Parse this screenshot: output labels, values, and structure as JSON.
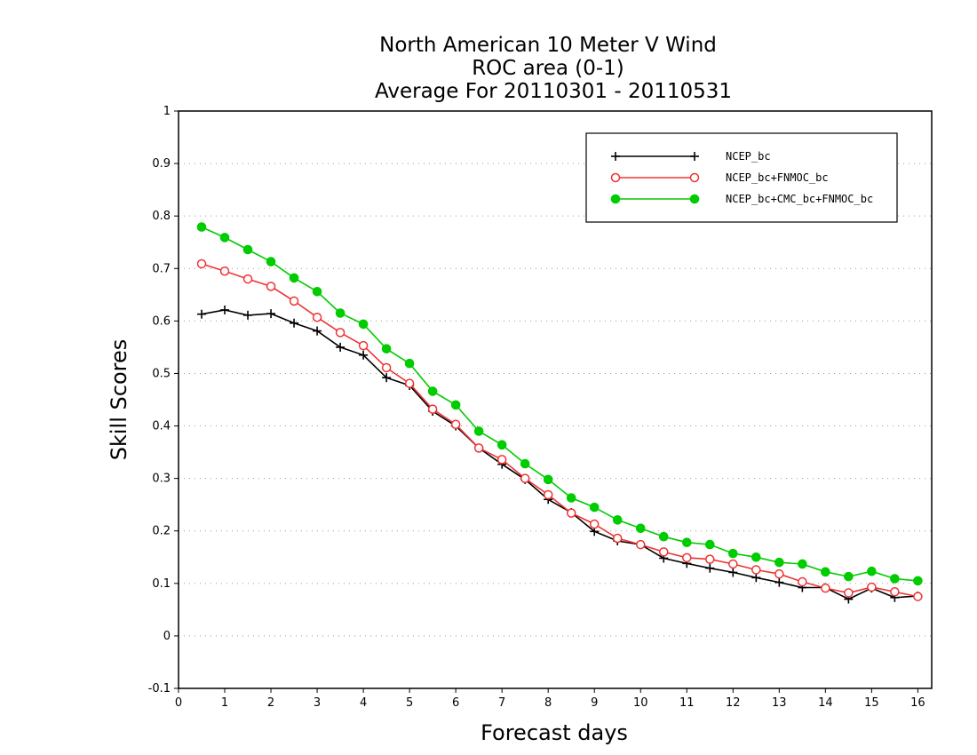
{
  "chart_data": {
    "type": "line",
    "title_lines": [
      "North American 10 Meter V Wind",
      "ROC area (0-1)",
      "Average For 20110301 - 20110531"
    ],
    "xlabel": "Forecast days",
    "ylabel": "Skill Scores",
    "xlim": [
      0,
      16.3
    ],
    "ylim": [
      -0.1,
      1
    ],
    "x_ticks": [
      0,
      1,
      2,
      3,
      4,
      5,
      6,
      7,
      8,
      9,
      10,
      11,
      12,
      13,
      14,
      15,
      16
    ],
    "x_tick_labels": [
      "0",
      "1",
      "2",
      "3",
      "4",
      "5",
      "6",
      "7",
      "8",
      "9",
      "10",
      "11",
      "12",
      "13",
      "14",
      "15",
      "16"
    ],
    "y_ticks": [
      -0.1,
      0,
      0.1,
      0.2,
      0.3,
      0.4,
      0.5,
      0.6,
      0.7,
      0.8,
      0.9,
      1
    ],
    "y_tick_labels": [
      "-0.1",
      "0",
      "0.1",
      "0.2",
      "0.3",
      "0.4",
      "0.5",
      "0.6",
      "0.7",
      "0.8",
      "0.9",
      "1"
    ],
    "grid": "horizontal-dotted",
    "legend_position": "top-right",
    "x": [
      0.5,
      1,
      1.5,
      2,
      2.5,
      3,
      3.5,
      4,
      4.5,
      5,
      5.5,
      6,
      6.5,
      7,
      7.5,
      8,
      8.5,
      9,
      9.5,
      10,
      10.5,
      11,
      11.5,
      12,
      12.5,
      13,
      13.5,
      14,
      14.5,
      15,
      15.5,
      16
    ],
    "series": [
      {
        "name": "NCEP_bc",
        "color": "#000000",
        "marker": "plus",
        "values": [
          0.613,
          0.621,
          0.611,
          0.614,
          0.596,
          0.581,
          0.55,
          0.535,
          0.492,
          0.477,
          0.428,
          0.4,
          0.358,
          0.327,
          0.298,
          0.26,
          0.235,
          0.199,
          0.181,
          0.174,
          0.148,
          0.138,
          0.129,
          0.121,
          0.111,
          0.102,
          0.092,
          0.092,
          0.07,
          0.091,
          0.073,
          0.076
        ]
      },
      {
        "name": "NCEP_bc+FNMOC_bc",
        "color": "#ee3333",
        "marker": "open-circle",
        "values": [
          0.709,
          0.695,
          0.68,
          0.666,
          0.638,
          0.607,
          0.578,
          0.553,
          0.511,
          0.481,
          0.432,
          0.403,
          0.358,
          0.336,
          0.3,
          0.269,
          0.234,
          0.213,
          0.186,
          0.174,
          0.16,
          0.149,
          0.146,
          0.137,
          0.126,
          0.118,
          0.103,
          0.091,
          0.082,
          0.093,
          0.084,
          0.075
        ]
      },
      {
        "name": "NCEP_bc+CMC_bc+FNMOC_bc",
        "color": "#00cc00",
        "marker": "filled-circle",
        "values": [
          0.779,
          0.759,
          0.736,
          0.713,
          0.682,
          0.656,
          0.615,
          0.594,
          0.547,
          0.519,
          0.466,
          0.44,
          0.39,
          0.364,
          0.328,
          0.298,
          0.263,
          0.245,
          0.221,
          0.205,
          0.189,
          0.178,
          0.174,
          0.157,
          0.15,
          0.14,
          0.137,
          0.122,
          0.113,
          0.123,
          0.109,
          0.105
        ]
      }
    ]
  }
}
